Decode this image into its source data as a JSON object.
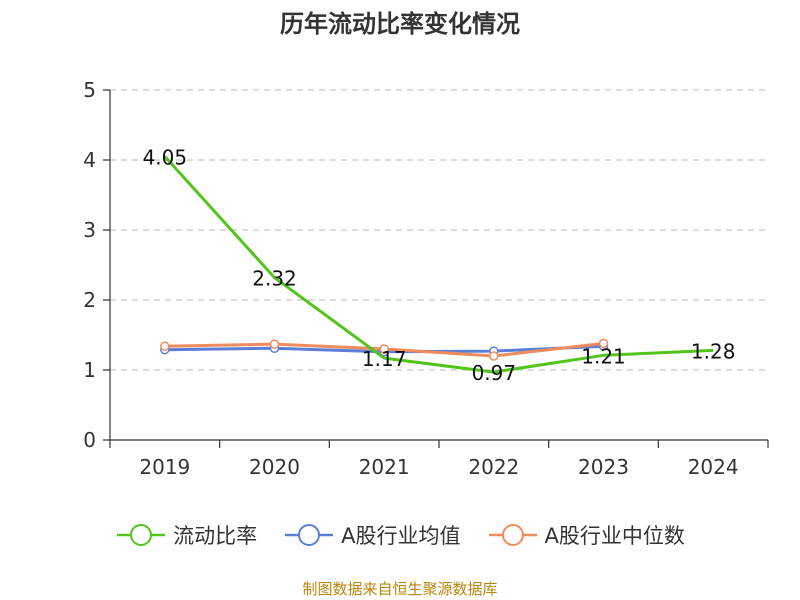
{
  "chart_data": {
    "type": "line",
    "title": "历年流动比率变化情况",
    "categories": [
      "2019",
      "2020",
      "2021",
      "2022",
      "2023",
      "2024"
    ],
    "ylim": [
      0,
      5
    ],
    "yticks": [
      0,
      1,
      2,
      3,
      4,
      5
    ],
    "grid": true,
    "legend_position": "bottom",
    "series": [
      {
        "name": "流动比率",
        "color": "#52c41a",
        "values": [
          4.05,
          2.32,
          1.17,
          0.97,
          1.21,
          1.28
        ],
        "labels": [
          "4.05",
          "2.32",
          "1.17",
          "0.97",
          "1.21",
          "1.28"
        ]
      },
      {
        "name": "A股行业均值",
        "color": "#5b7fd6",
        "values": [
          1.29,
          1.31,
          1.26,
          1.27,
          1.34,
          null
        ]
      },
      {
        "name": "A股行业中位数",
        "color": "#f08b5d",
        "values": [
          1.34,
          1.37,
          1.3,
          1.2,
          1.38,
          null
        ]
      }
    ]
  },
  "footer": {
    "source": "制图数据来自恒生聚源数据库"
  }
}
